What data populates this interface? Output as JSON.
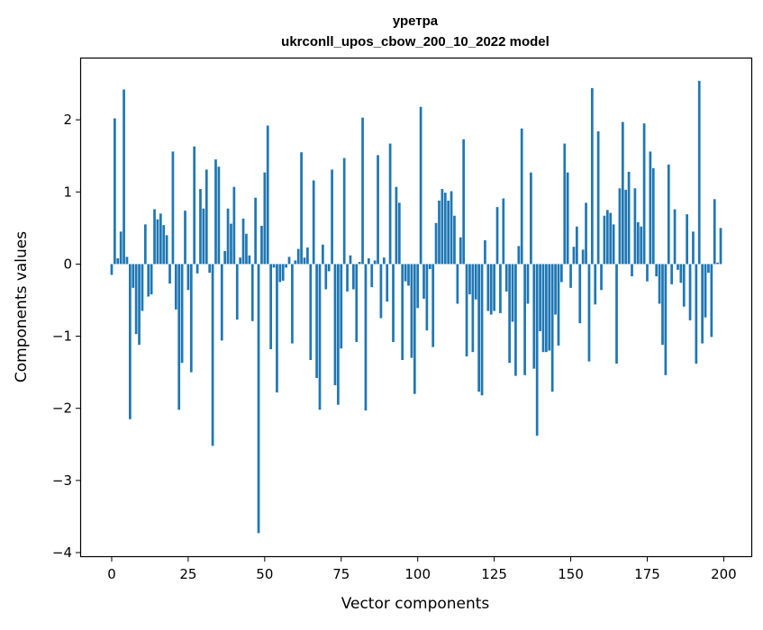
{
  "chart_data": {
    "type": "bar",
    "title_line1": "уретра",
    "title_line2": "ukrconll_upos_cbow_200_10_2022 model",
    "xlabel": "Vector components",
    "ylabel": "Components values",
    "xlim": [
      -10,
      209
    ],
    "ylim": [
      -4.05,
      2.85
    ],
    "xticks": [
      0,
      25,
      50,
      75,
      100,
      125,
      150,
      175,
      200
    ],
    "xtick_labels": [
      "0",
      "25",
      "50",
      "75",
      "100",
      "125",
      "150",
      "175",
      "200"
    ],
    "yticks": [
      -4,
      -3,
      -2,
      -1,
      0,
      1,
      2
    ],
    "ytick_labels": [
      "−4",
      "−3",
      "−2",
      "−1",
      "0",
      "1",
      "2"
    ],
    "bar_color": "#1f77b4",
    "values": [
      -0.15,
      2.02,
      0.08,
      0.45,
      2.42,
      0.1,
      -2.15,
      -0.33,
      -0.97,
      -1.12,
      -0.65,
      0.55,
      -0.45,
      -0.42,
      0.76,
      0.62,
      0.7,
      0.54,
      0.4,
      -0.27,
      1.56,
      -0.63,
      -2.02,
      -1.37,
      0.74,
      -0.36,
      -1.5,
      1.63,
      -0.13,
      1.04,
      0.77,
      1.31,
      -0.12,
      -2.52,
      1.45,
      1.35,
      -1.06,
      0.18,
      0.77,
      0.56,
      1.07,
      -0.77,
      0.09,
      0.63,
      0.42,
      0.12,
      -0.79,
      0.92,
      -3.73,
      0.53,
      1.27,
      1.92,
      -1.18,
      -0.05,
      -1.78,
      -0.25,
      -0.23,
      -0.05,
      0.1,
      -1.1,
      0.05,
      0.21,
      1.55,
      0.09,
      0.23,
      -1.33,
      1.16,
      -1.58,
      -2.02,
      0.27,
      -0.35,
      -0.1,
      1.31,
      -1.68,
      -1.95,
      -1.17,
      1.47,
      -0.38,
      0.12,
      -0.35,
      -1.08,
      0.03,
      2.03,
      -2.03,
      0.08,
      -0.32,
      0.05,
      1.51,
      -0.75,
      0.09,
      -0.52,
      1.67,
      -1.08,
      1.07,
      0.85,
      -1.33,
      -0.24,
      -0.3,
      -1.3,
      -1.8,
      -0.61,
      2.18,
      -0.48,
      -0.92,
      -0.07,
      -1.15,
      0.57,
      0.88,
      1.04,
      0.99,
      0.88,
      1.01,
      0.67,
      -0.55,
      0.37,
      1.73,
      -1.28,
      -0.42,
      -1.22,
      -0.49,
      -1.77,
      -1.82,
      0.33,
      -0.65,
      -0.7,
      -0.65,
      0.79,
      -0.68,
      0.91,
      -0.38,
      -1.37,
      -0.8,
      -1.55,
      0.25,
      1.88,
      -1.54,
      -0.55,
      1.27,
      -1.45,
      -2.38,
      -0.93,
      -1.22,
      -1.22,
      -1.2,
      -1.77,
      -0.7,
      -1.13,
      -0.25,
      1.67,
      1.27,
      -0.33,
      0.24,
      0.52,
      -0.82,
      0.2,
      0.85,
      -1.35,
      2.44,
      -0.56,
      1.84,
      -0.36,
      0.67,
      0.75,
      0.71,
      0.55,
      -1.38,
      1.05,
      1.97,
      1.03,
      1.28,
      -0.17,
      1.05,
      0.58,
      0.52,
      1.95,
      -0.24,
      1.56,
      1.33,
      -0.17,
      -0.55,
      -1.12,
      -1.54,
      1.38,
      -0.28,
      0.76,
      -0.08,
      -0.26,
      -0.59,
      0.69,
      -0.78,
      0.45,
      -1.38,
      2.54,
      -1.1,
      -0.74,
      -0.12,
      -1.01,
      0.9,
      0.02,
      0.5
    ]
  }
}
